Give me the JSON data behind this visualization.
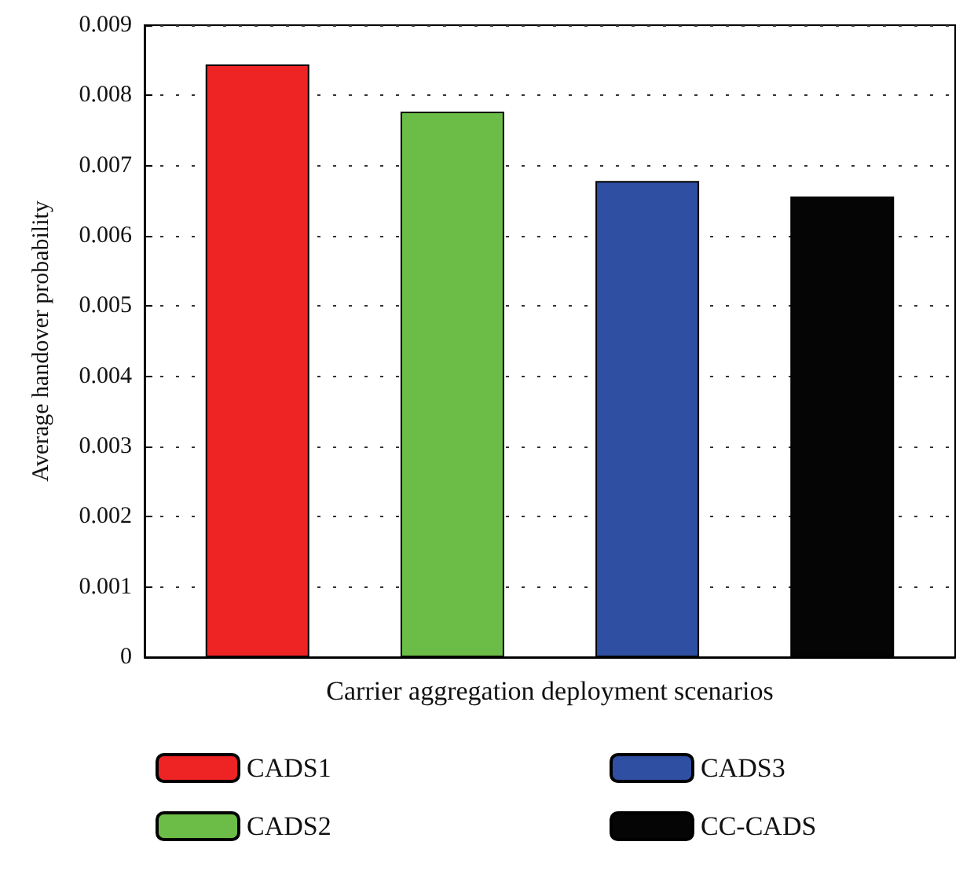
{
  "chart_data": {
    "type": "bar",
    "xlabel": "Carrier aggregation deployment scenarios",
    "ylabel": "Average handover probability",
    "categories": [
      null
    ],
    "series": [
      {
        "name": "CADS1",
        "color": "#ee2324",
        "values": [
          0.00844
        ]
      },
      {
        "name": "CADS2",
        "color": "#6cbd47",
        "values": [
          0.00777
        ]
      },
      {
        "name": "CADS3",
        "color": "#2f4fa2",
        "values": [
          0.00678
        ]
      },
      {
        "name": "CC-CADS",
        "color": "#050505",
        "values": [
          0.00656
        ]
      }
    ],
    "ylim": [
      0,
      0.009
    ],
    "yticks": [
      0,
      0.001,
      0.002,
      0.003,
      0.004,
      0.005,
      0.006,
      0.007,
      0.008,
      0.009
    ],
    "grid": "y",
    "legend": "bottom"
  }
}
